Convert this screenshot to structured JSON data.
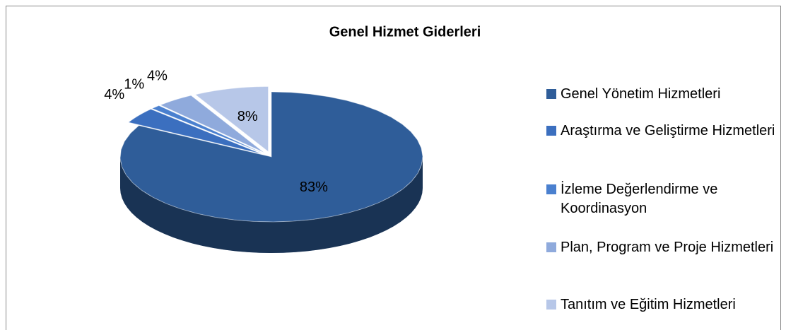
{
  "chart_data": {
    "type": "pie",
    "title": "Genel Hizmet Giderleri",
    "categories": [
      "Genel Yönetim Hizmetleri",
      "Araştırma ve Geliştirme Hizmetleri",
      "İzleme Değerlendirme ve Koordinasyon",
      "Plan, Program ve Proje Hizmetleri",
      "Tanıtım ve Eğitim Hizmetleri"
    ],
    "values": [
      83,
      4,
      1,
      4,
      8
    ],
    "value_labels": [
      "83%",
      "4%",
      "1%",
      "4%",
      "8%"
    ],
    "colors": [
      "#2f5d99",
      "#3b6fbf",
      "#4a80cf",
      "#8faadc",
      "#b7c7e8"
    ],
    "legend": "right"
  }
}
